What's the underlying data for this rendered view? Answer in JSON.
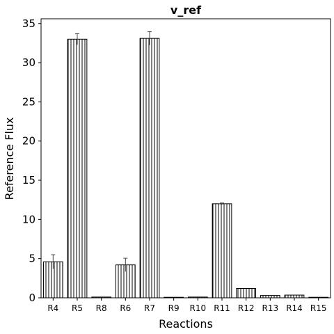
{
  "chart_data": {
    "type": "bar",
    "title": "v_ref",
    "xlabel": "Reactions",
    "ylabel": "Reference Flux",
    "categories": [
      "R4",
      "R5",
      "R8",
      "R6",
      "R7",
      "R9",
      "R10",
      "R11",
      "R12",
      "R13",
      "R14",
      "R15"
    ],
    "values": [
      4.6,
      33.0,
      0.1,
      4.2,
      33.1,
      0.0,
      0.1,
      12.0,
      1.2,
      0.3,
      0.35,
      0.0
    ],
    "errors": [
      0.9,
      0.7,
      0.0,
      0.85,
      0.85,
      0.0,
      0.0,
      0.1,
      0.0,
      0.0,
      0.0,
      0.0
    ],
    "ylim": [
      0,
      35.6
    ],
    "yticks": [
      0,
      5,
      10,
      15,
      20,
      25,
      30,
      35
    ],
    "grid": false,
    "bar_fill": "#ffffff",
    "bar_edge": "#000000",
    "hatch": "vertical-lines",
    "error_color": "#444444"
  }
}
